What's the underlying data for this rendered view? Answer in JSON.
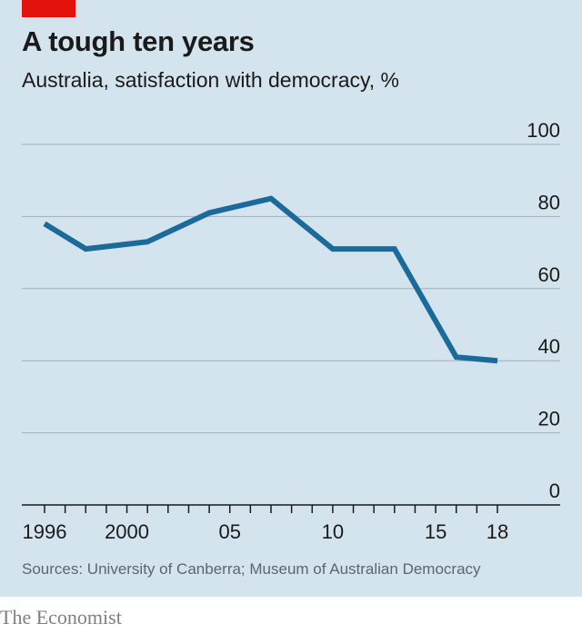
{
  "header": {
    "title": "A tough ten years",
    "subtitle": "Australia, satisfaction with democracy, %",
    "tag_color": "#e3120b"
  },
  "footer": {
    "source": "Sources: University of Canberra; Museum of Australian Democracy",
    "brand": "The Economist"
  },
  "colors": {
    "background": "#d4e4ee",
    "line": "#1b6a99",
    "grid": "#9fb0bd"
  },
  "chart_data": {
    "type": "line",
    "title": "A tough ten years",
    "subtitle": "Australia, satisfaction with democracy, %",
    "xlim": [
      1996,
      2018
    ],
    "ylim": [
      0,
      100
    ],
    "y_ticks": [
      0,
      20,
      40,
      60,
      80,
      100
    ],
    "y_tick_labels": [
      "0",
      "20",
      "40",
      "60",
      "80",
      "100"
    ],
    "x_tick_labels": [
      {
        "value": 1996,
        "label": "1996"
      },
      {
        "value": 2000,
        "label": "2000"
      },
      {
        "value": 2005,
        "label": "05"
      },
      {
        "value": 2010,
        "label": "10"
      },
      {
        "value": 2015,
        "label": "15"
      },
      {
        "value": 2018,
        "label": "18"
      }
    ],
    "grid": true,
    "series": [
      {
        "x": [
          1996,
          1998,
          2001,
          2004,
          2007,
          2010,
          2013,
          2016,
          2018
        ],
        "y": [
          78,
          71,
          73,
          81,
          85,
          71,
          71,
          41,
          40
        ]
      }
    ]
  }
}
